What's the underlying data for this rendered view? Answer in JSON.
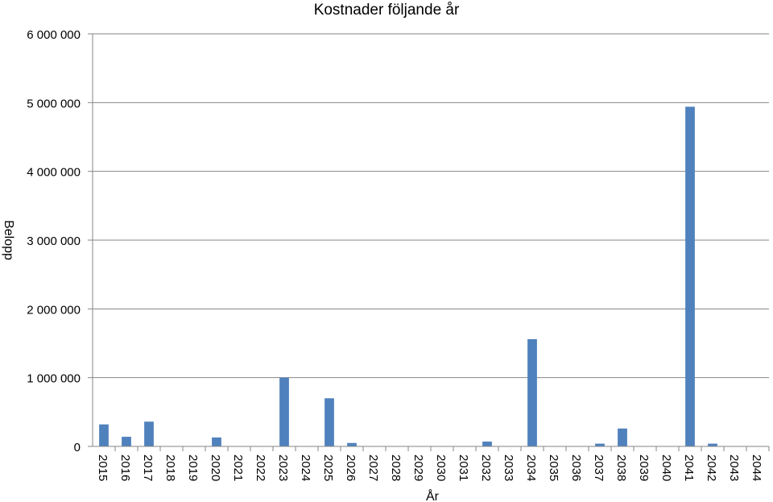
{
  "chart_data": {
    "type": "bar",
    "title": "Kostnader följande år",
    "xlabel": "År",
    "ylabel": "Belopp",
    "ylim": [
      0,
      6000000
    ],
    "yticks": [
      0,
      1000000,
      2000000,
      3000000,
      4000000,
      5000000,
      6000000
    ],
    "ytick_labels": [
      "0",
      "1 000 000",
      "2 000 000",
      "3 000 000",
      "4 000 000",
      "5 000 000",
      "6 000 000"
    ],
    "grid": true,
    "legend": "none",
    "bar_color": "#4f81bd",
    "categories": [
      "2015",
      "2016",
      "2017",
      "2018",
      "2019",
      "2020",
      "2021",
      "2022",
      "2023",
      "2024",
      "2025",
      "2026",
      "2027",
      "2028",
      "2029",
      "2030",
      "2031",
      "2032",
      "2033",
      "2034",
      "2035",
      "2036",
      "2037",
      "2038",
      "2039",
      "2040",
      "2041",
      "2042",
      "2043",
      "2044"
    ],
    "values": [
      320000,
      140000,
      360000,
      0,
      0,
      130000,
      0,
      0,
      1000000,
      0,
      700000,
      50000,
      0,
      0,
      0,
      0,
      0,
      70000,
      0,
      1560000,
      0,
      0,
      40000,
      260000,
      0,
      0,
      4940000,
      40000,
      0,
      0
    ]
  }
}
